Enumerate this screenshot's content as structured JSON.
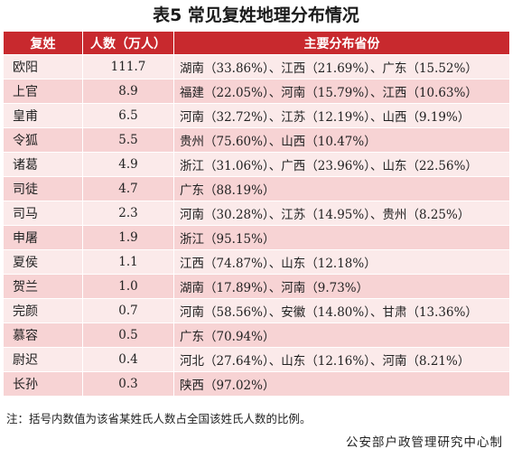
{
  "title": "表5  常见复姓地理分布情况",
  "headers": {
    "surname": "复姓",
    "population": "人数（万人）",
    "distribution": "主要分布省份"
  },
  "rows": [
    {
      "surname": "欧阳",
      "population": "111.7",
      "distribution": "湖南（33.86%）、江西（21.69%）、广东（15.52%）"
    },
    {
      "surname": "上官",
      "population": "8.9",
      "distribution": "福建（22.05%）、河南（15.79%）、江西（10.63%）"
    },
    {
      "surname": "皇甫",
      "population": "6.5",
      "distribution": "河南（32.72%）、江苏（12.19%）、山西（9.19%）"
    },
    {
      "surname": "令狐",
      "population": "5.5",
      "distribution": "贵州（75.60%）、山西（10.47%）"
    },
    {
      "surname": "诸葛",
      "population": "4.9",
      "distribution": "浙江（31.06%）、广西（23.96%）、山东（22.56%）"
    },
    {
      "surname": "司徒",
      "population": "4.7",
      "distribution": "广东（88.19%）"
    },
    {
      "surname": "司马",
      "population": "2.3",
      "distribution": "河南（30.28%）、江苏（14.95%）、贵州（8.25%）"
    },
    {
      "surname": "申屠",
      "population": "1.9",
      "distribution": "浙江（95.15%）"
    },
    {
      "surname": "夏侯",
      "population": "1.1",
      "distribution": "江西（74.87%）、山东（12.18%）"
    },
    {
      "surname": "贺兰",
      "population": "1.0",
      "distribution": "湖南（17.89%）、河南（9.73%）"
    },
    {
      "surname": "完颜",
      "population": "0.7",
      "distribution": "河南（58.56%）、安徽（14.80%）、甘肃（13.36%）"
    },
    {
      "surname": "慕容",
      "population": "0.5",
      "distribution": "广东（70.94%）"
    },
    {
      "surname": "尉迟",
      "population": "0.4",
      "distribution": "河北（27.64%）、山东（12.16%）、河南（8.21%）"
    },
    {
      "surname": "长孙",
      "population": "0.3",
      "distribution": "陕西（97.02%）"
    }
  ],
  "note": "注：括号内数值为该省某姓氏人数占全国该姓氏人数的比例。",
  "source": "公安部户政管理研究中心制",
  "colors": {
    "header_bg": "#c8292e",
    "row_light": "#fbeaea",
    "row_dark": "#f7d3d4"
  }
}
